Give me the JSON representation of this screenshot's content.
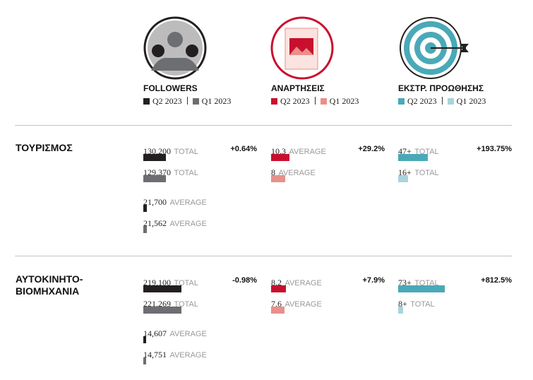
{
  "columns": [
    {
      "title": "FOLLOWERS",
      "legend": [
        "Q2 2023",
        "Q1 2023"
      ],
      "colors": [
        "#231f20",
        "#6d6e71"
      ]
    },
    {
      "title": "ΑΝΑΡΤΗΣΕΙΣ",
      "legend": [
        "Q2 2023",
        "Q1 2023"
      ],
      "colors": [
        "#c8102e",
        "#e8908a"
      ]
    },
    {
      "title": "ΕΚΣΤΡ. ΠΡΟΩΘΗΣΗΣ",
      "legend": [
        "Q2 2023",
        "Q1 2023"
      ],
      "colors": [
        "#4aa9b8",
        "#a8d4dc"
      ]
    }
  ],
  "rows": [
    {
      "label": [
        "ΤΟΥΡΙΣΜΟΣ"
      ],
      "cells": [
        {
          "change": "+0.64%",
          "items": [
            {
              "value": 130200,
              "label": "130,200",
              "unit": "TOTAL"
            },
            {
              "value": 129370,
              "label": "129,370",
              "unit": "TOTAL"
            },
            {
              "value": 21700,
              "label": "21,700",
              "unit": "AVERAGE"
            },
            {
              "value": 21562,
              "label": "21,562",
              "unit": "AVERAGE"
            }
          ]
        },
        {
          "change": "+29.2%",
          "items": [
            {
              "value": 10.3,
              "label": "10.3",
              "unit": "AVERAGE"
            },
            {
              "value": 8,
              "label": "8",
              "unit": "AVERAGE"
            }
          ]
        },
        {
          "change": "+193.75%",
          "items": [
            {
              "value": 47,
              "label": "47+",
              "unit": "TOTAL"
            },
            {
              "value": 16,
              "label": "16+",
              "unit": "TOTAL"
            }
          ]
        }
      ]
    },
    {
      "label": [
        "ΑΥΤΟΚΙΝΗΤΟ-",
        "ΒΙΟΜΗΧΑΝΙΑ"
      ],
      "cells": [
        {
          "change": "-0.98%",
          "items": [
            {
              "value": 219100,
              "label": "219,100",
              "unit": "TOTAL"
            },
            {
              "value": 221269,
              "label": "221,269",
              "unit": "TOTAL"
            },
            {
              "value": 14607,
              "label": "14,607",
              "unit": "AVERAGE"
            },
            {
              "value": 14751,
              "label": "14,751",
              "unit": "AVERAGE"
            }
          ]
        },
        {
          "change": "+7.9%",
          "items": [
            {
              "value": 8.2,
              "label": "8.2",
              "unit": "AVERAGE"
            },
            {
              "value": 7.6,
              "label": "7.6",
              "unit": "AVERAGE"
            }
          ]
        },
        {
          "change": "+812.5%",
          "items": [
            {
              "value": 73,
              "label": "73+",
              "unit": "TOTAL"
            },
            {
              "value": 8,
              "label": "8+",
              "unit": "TOTAL"
            }
          ]
        }
      ]
    }
  ]
}
